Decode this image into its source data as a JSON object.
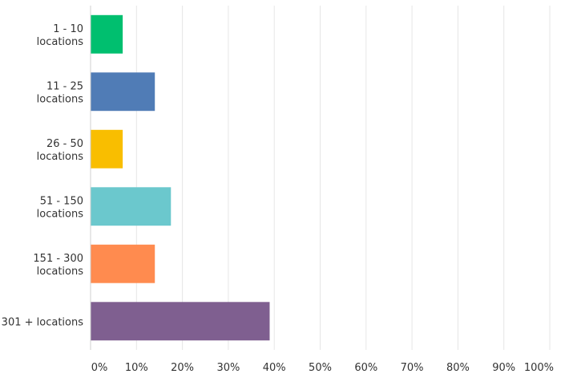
{
  "chart_data": {
    "type": "bar",
    "orientation": "horizontal",
    "categories": [
      [
        "1 - 10",
        "locations"
      ],
      [
        "11 - 25",
        "locations"
      ],
      [
        "26 - 50",
        "locations"
      ],
      [
        "51 - 150",
        "locations"
      ],
      [
        "151 - 300",
        "locations"
      ],
      [
        "301 + locations"
      ]
    ],
    "values": [
      7,
      14,
      7,
      17.5,
      14,
      39
    ],
    "colors": [
      "#00bf6f",
      "#507cb6",
      "#f9be00",
      "#6bc8cd",
      "#ff8b4f",
      "#7f5f90"
    ],
    "xlim": [
      0,
      100
    ],
    "x_ticks": [
      "0%",
      "10%",
      "20%",
      "30%",
      "40%",
      "50%",
      "60%",
      "70%",
      "80%",
      "90%",
      "100%"
    ],
    "grid": true,
    "title": "",
    "xlabel": "",
    "ylabel": ""
  }
}
